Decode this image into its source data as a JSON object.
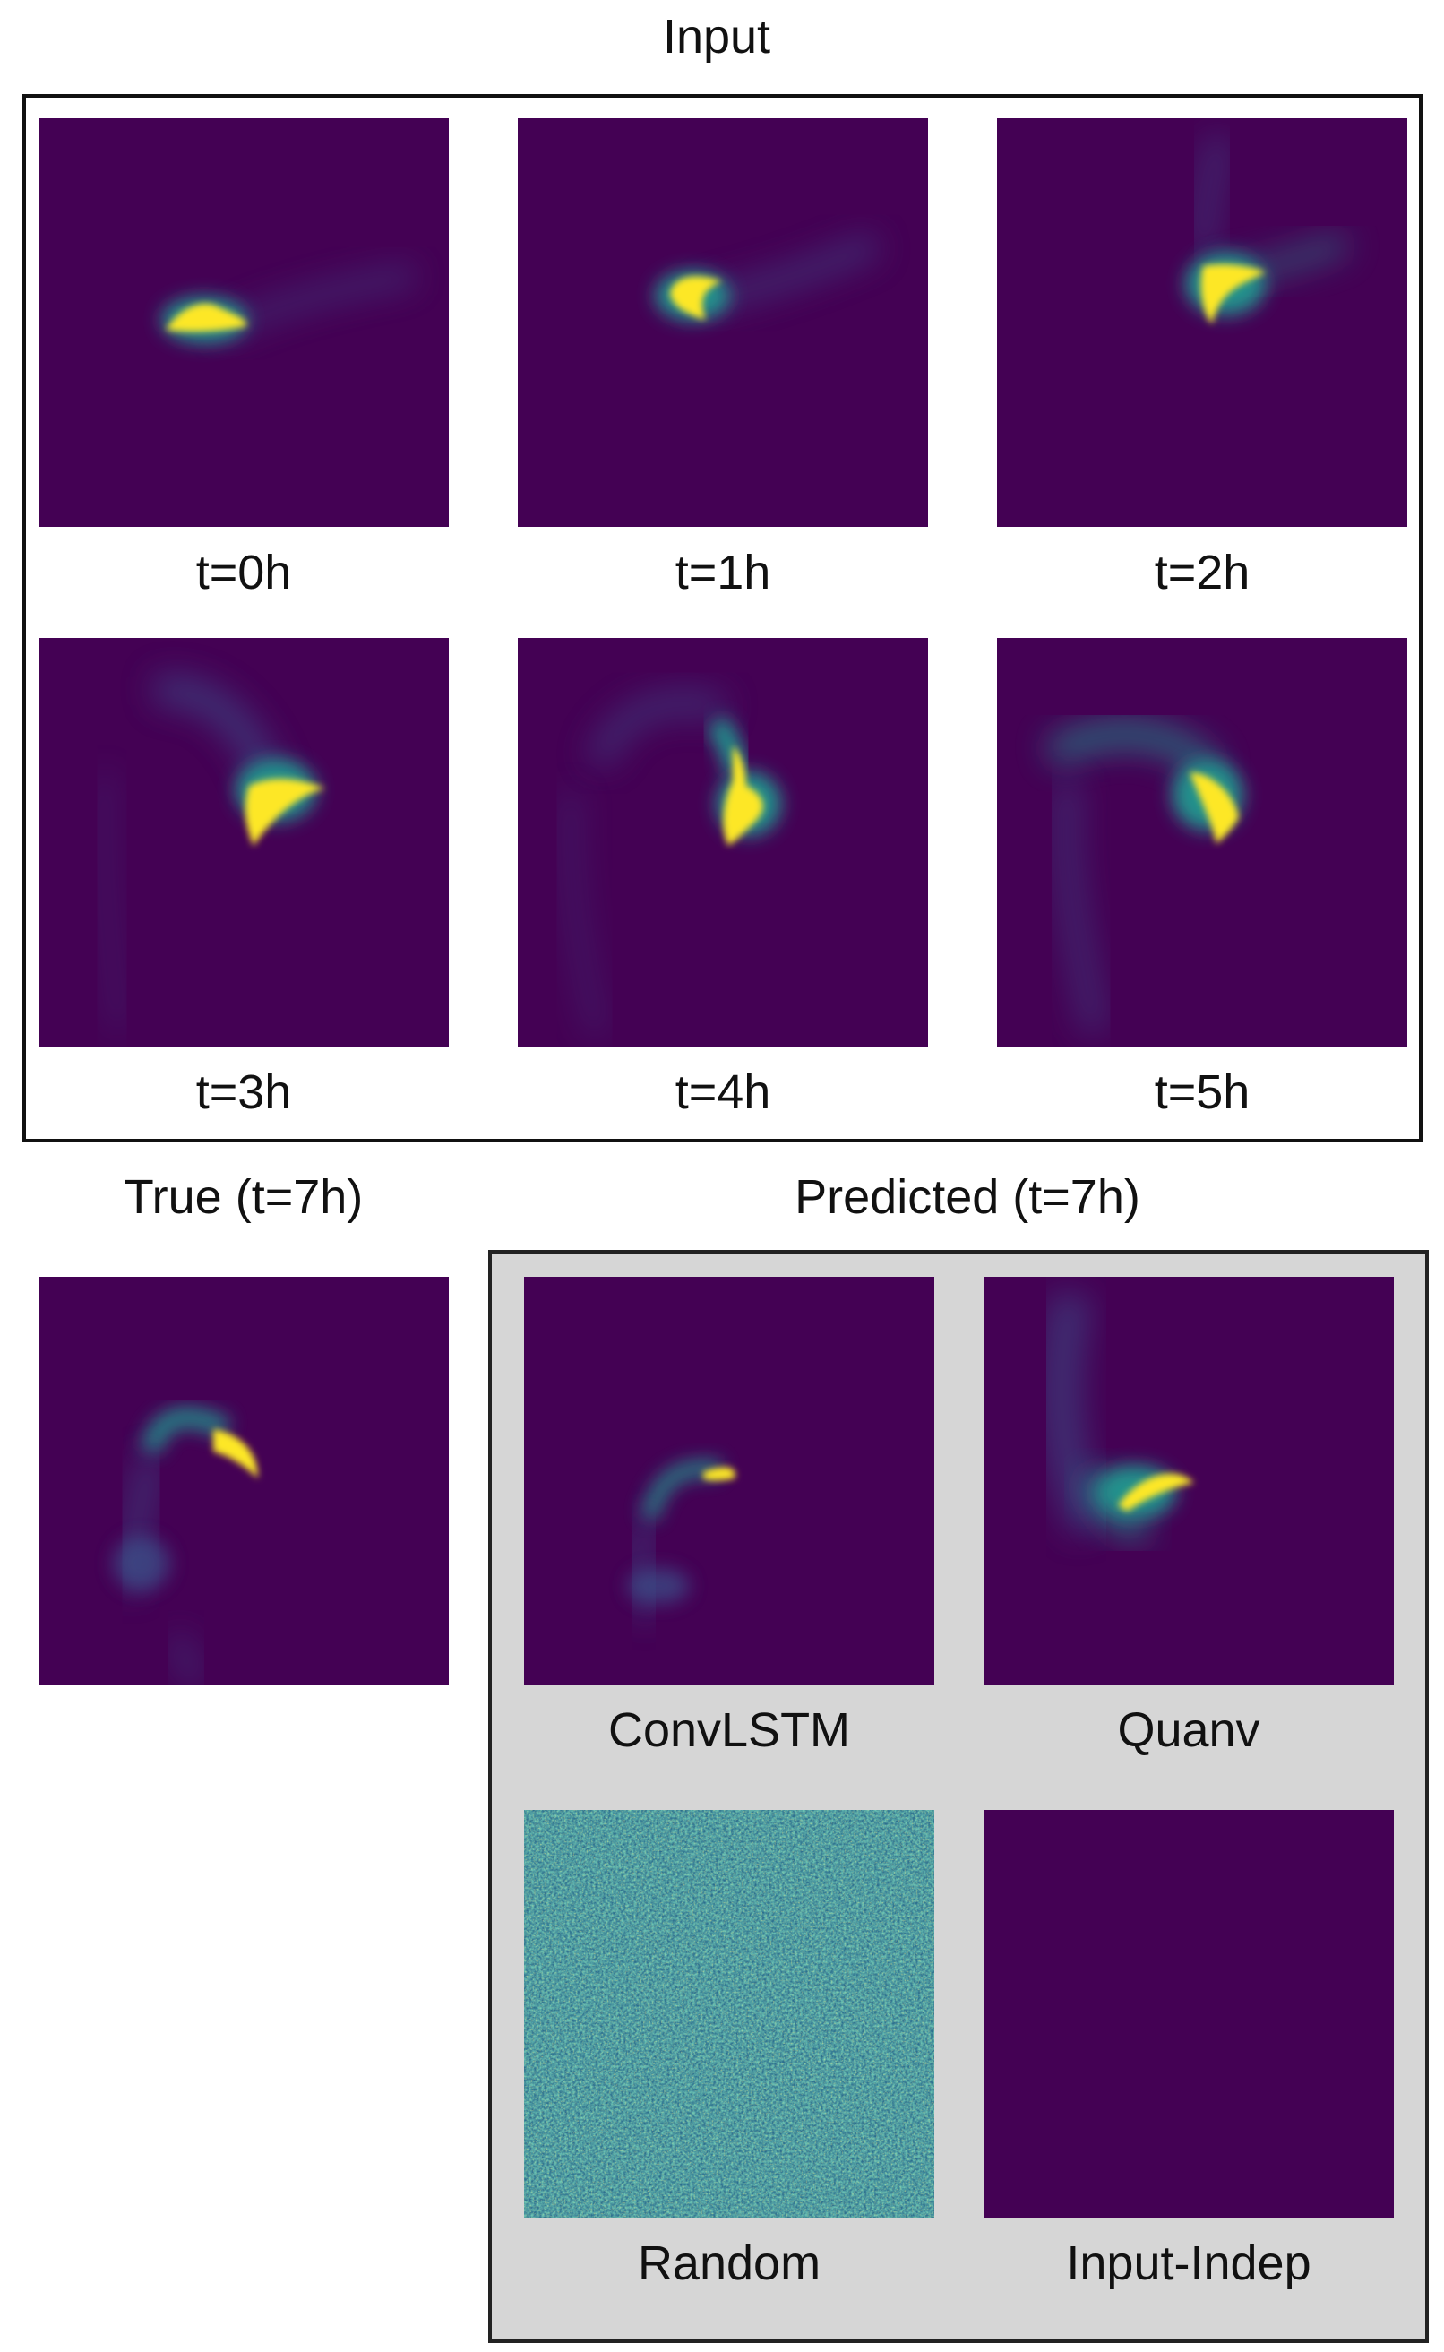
{
  "input": {
    "title": "Input",
    "frames": [
      {
        "label": "t=0h"
      },
      {
        "label": "t=1h"
      },
      {
        "label": "t=2h"
      },
      {
        "label": "t=3h"
      },
      {
        "label": "t=4h"
      },
      {
        "label": "t=5h"
      }
    ]
  },
  "truth": {
    "title": "True (t=7h)"
  },
  "predicted": {
    "title": "Predicted (t=7h)",
    "models": [
      {
        "label": "ConvLSTM"
      },
      {
        "label": "Quanv"
      },
      {
        "label": "Random"
      },
      {
        "label": "Input-Indep"
      }
    ]
  },
  "colors": {
    "background_dark": "#440154",
    "bright": "#fde725",
    "mid_teal": "#21918c",
    "mid_blue": "#3b528b",
    "predicted_box": "#d6d6d6"
  }
}
